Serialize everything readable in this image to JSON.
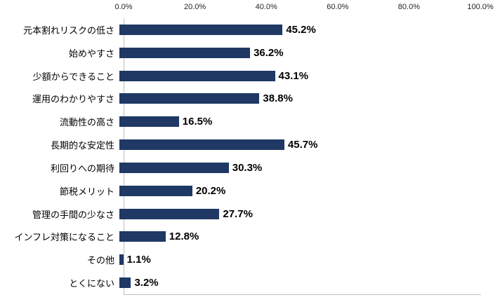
{
  "chart_data": {
    "type": "bar",
    "orientation": "horizontal",
    "title": "",
    "xlabel": "",
    "ylabel": "",
    "xlim": [
      0,
      100
    ],
    "grid": "off",
    "legend_position": "none",
    "bar_color": "#1f3864",
    "x_ticks": [
      "0.0%",
      "20.0%",
      "40.0%",
      "60.0%",
      "80.0%",
      "100.0%"
    ],
    "categories": [
      "元本割れリスクの低さ",
      "始めやすさ",
      "少額からできること",
      "運用のわかりやすさ",
      "流動性の高さ",
      "長期的な安定性",
      "利回りへの期待",
      "節税メリット",
      "管理の手間の少なさ",
      "インフレ対策になること",
      "その他",
      "とくにない"
    ],
    "values": [
      45.2,
      36.2,
      43.1,
      38.8,
      16.5,
      45.7,
      30.3,
      20.2,
      27.7,
      12.8,
      1.1,
      3.2
    ],
    "value_labels": [
      "45.2%",
      "36.2%",
      "43.1%",
      "38.8%",
      "16.5%",
      "45.7%",
      "30.3%",
      "20.2%",
      "27.7%",
      "12.8%",
      "1.1%",
      "3.2%"
    ]
  }
}
